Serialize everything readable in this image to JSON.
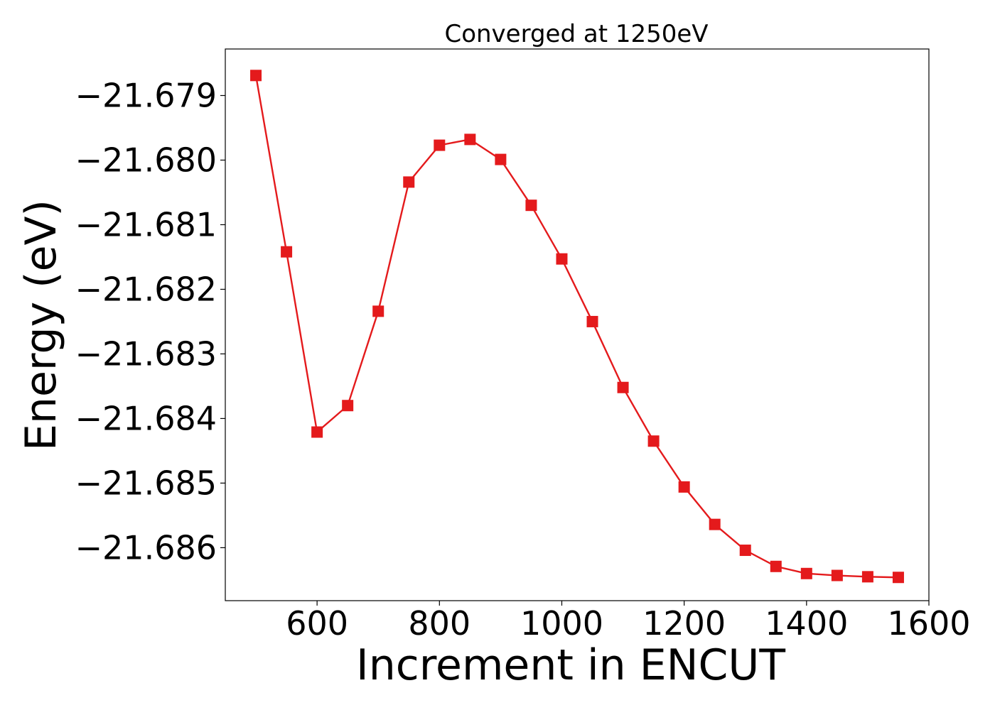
{
  "chart_data": {
    "type": "line",
    "title": "Converged at 1250eV",
    "xlabel": "Increment in ENCUT",
    "ylabel": "Energy (eV)",
    "xlim": [
      450,
      1600
    ],
    "ylim": [
      -21.68682,
      -21.67828
    ],
    "x_ticks": [
      600,
      800,
      1000,
      1200,
      1400,
      1600
    ],
    "x_tick_labels": [
      "600",
      "800",
      "1000",
      "1200",
      "1400",
      "1600"
    ],
    "y_ticks": [
      -21.679,
      -21.68,
      -21.681,
      -21.682,
      -21.683,
      -21.684,
      -21.685,
      -21.686
    ],
    "y_tick_labels": [
      "−21.679",
      "−21.680",
      "−21.681",
      "−21.682",
      "−21.683",
      "−21.684",
      "−21.685",
      "−21.686"
    ],
    "grid": false,
    "series": [
      {
        "color": "#e41a1c",
        "marker": "square",
        "x": [
          500,
          550,
          600,
          650,
          700,
          750,
          800,
          850,
          900,
          950,
          1000,
          1050,
          1100,
          1150,
          1200,
          1250,
          1300,
          1350,
          1400,
          1450,
          1500,
          1550
        ],
        "y": [
          -21.67869,
          -21.68142,
          -21.68421,
          -21.6838,
          -21.68234,
          -21.68034,
          -21.67977,
          -21.67968,
          -21.67999,
          -21.6807,
          -21.68153,
          -21.6825,
          -21.68352,
          -21.68435,
          -21.68506,
          -21.68564,
          -21.68604,
          -21.68629,
          -21.6864,
          -21.68643,
          -21.68645,
          -21.68646
        ]
      }
    ]
  }
}
